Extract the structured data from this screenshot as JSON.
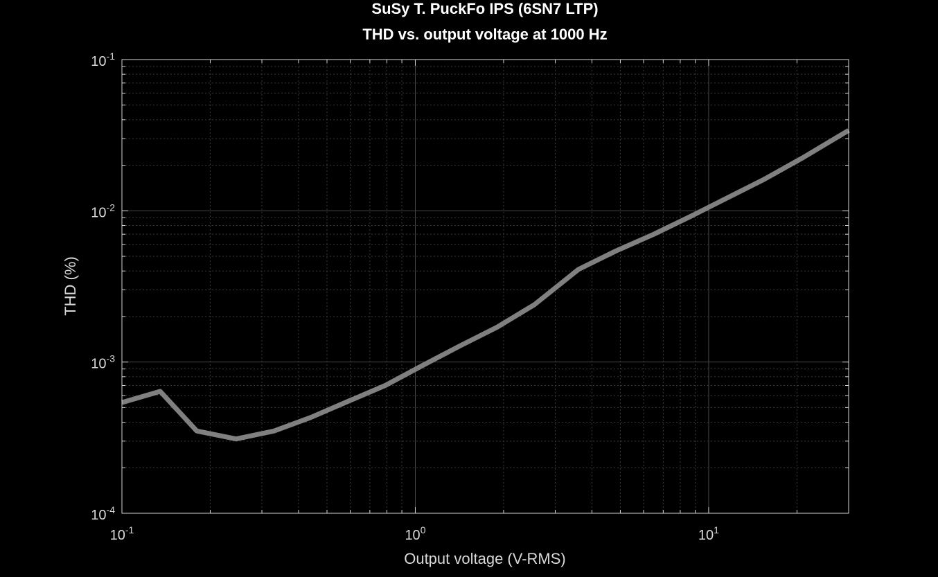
{
  "chart_data": {
    "type": "line",
    "title": "SuSy T. PuckFo IPS (6SN7 LTP)",
    "subtitle": "THD vs. output voltage at 1000 Hz",
    "xlabel": "Output voltage (V-RMS)",
    "ylabel": "THD (%)",
    "xscale": "log",
    "yscale": "log",
    "xlim": [
      0.1,
      30
    ],
    "ylim": [
      0.0001,
      0.1
    ],
    "grid": true,
    "minor_grid": true,
    "x_ticks": [
      {
        "base": "10",
        "exp": "-1",
        "value": 0.1
      },
      {
        "base": "10",
        "exp": "0",
        "value": 1
      },
      {
        "base": "10",
        "exp": "1",
        "value": 10
      }
    ],
    "y_ticks": [
      {
        "base": "10",
        "exp": "-4",
        "value": 0.0001
      },
      {
        "base": "10",
        "exp": "-3",
        "value": 0.001
      },
      {
        "base": "10",
        "exp": "-2",
        "value": 0.01
      },
      {
        "base": "10",
        "exp": "-1",
        "value": 0.1
      }
    ],
    "colors": {
      "background": "#000000",
      "axes_bg": "#000000",
      "axes": "#d9d9d9",
      "grid": "#3a3a3a",
      "line": "#808080"
    },
    "series": [
      {
        "x": [
          0.1,
          0.135,
          0.18,
          0.245,
          0.33,
          0.44,
          0.59,
          0.79,
          1.06,
          1.42,
          1.9,
          2.55,
          3.6,
          4.8,
          6.5,
          8.7,
          11.6,
          15.5,
          21,
          30
        ],
        "y": [
          0.00054,
          0.00064,
          0.00035,
          0.00031,
          0.00035,
          0.00043,
          0.00055,
          0.0007,
          0.00095,
          0.00128,
          0.0017,
          0.0024,
          0.0041,
          0.0054,
          0.007,
          0.0092,
          0.0122,
          0.0162,
          0.0225,
          0.034
        ]
      }
    ]
  }
}
